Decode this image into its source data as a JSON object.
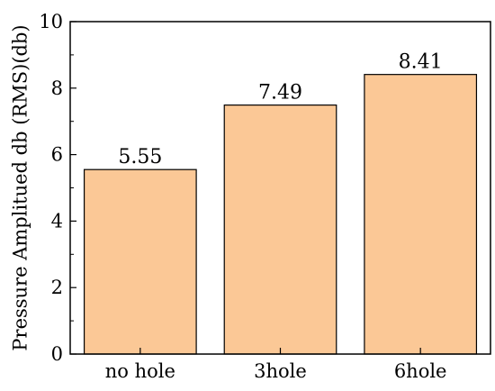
{
  "chart_data": {
    "type": "bar",
    "categories": [
      "no hole",
      "3hole",
      "6hole"
    ],
    "values": [
      5.55,
      7.49,
      8.41
    ],
    "value_labels": [
      "5.55",
      "7.49",
      "8.41"
    ],
    "ylabel": "Pressure Amplitued db (RMS)(db)",
    "xlabel": "",
    "ylim": [
      0,
      10
    ],
    "yticks": [
      0,
      2,
      4,
      6,
      8,
      10
    ],
    "bar_color": "#fbc896",
    "grid": false
  }
}
